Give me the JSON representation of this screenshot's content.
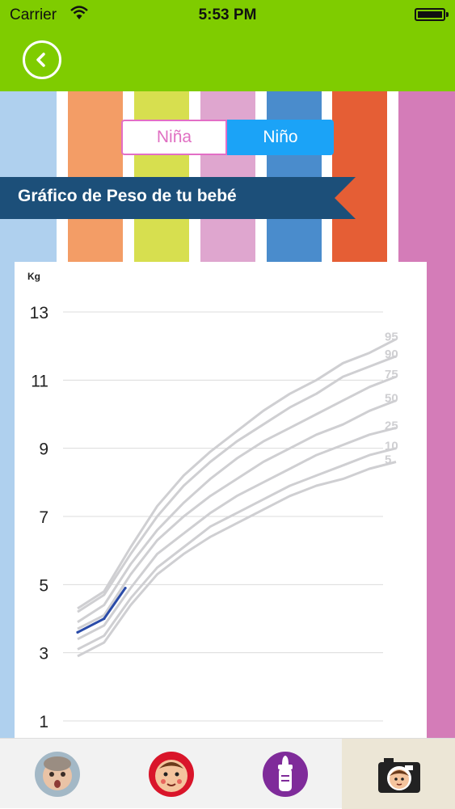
{
  "status_bar": {
    "carrier": "Carrier",
    "time": "5:53 PM"
  },
  "nav": {
    "back_icon": "chevron-left-icon"
  },
  "segment": {
    "girl_label": "Niña",
    "boy_label": "Niño",
    "selected": "Niño"
  },
  "banner": {
    "title": "Gráfico de Peso de tu bebé"
  },
  "colors": {
    "nav_green": "#7fcc00",
    "stripes": [
      "#afd0ee",
      "#f39d66",
      "#d7df4f",
      "#dfa6cf",
      "#4a8ccc",
      "#e55e35",
      "#d47cb8"
    ],
    "banner": "#1c4f79",
    "girl_pink": "#e06fc2",
    "boy_blue": "#1ba3f7",
    "percentile_grey": "#cfcfd2",
    "baby_line": "#2a4ba8"
  },
  "chart_data": {
    "type": "line",
    "ylabel": "Kg",
    "xlabel": "",
    "yticks": [
      1,
      3,
      5,
      7,
      9,
      11,
      13
    ],
    "ylim": [
      1,
      13
    ],
    "xlim": [
      0,
      12
    ],
    "grid": true,
    "x": [
      0,
      1,
      2,
      3,
      4,
      5,
      6,
      7,
      8,
      9,
      10,
      11,
      12
    ],
    "series": [
      {
        "name": "5",
        "values": [
          2.9,
          3.3,
          4.4,
          5.3,
          5.9,
          6.4,
          6.8,
          7.2,
          7.6,
          7.9,
          8.1,
          8.4,
          8.6
        ]
      },
      {
        "name": "10",
        "values": [
          3.1,
          3.5,
          4.6,
          5.5,
          6.1,
          6.7,
          7.1,
          7.5,
          7.9,
          8.2,
          8.5,
          8.8,
          9.0
        ]
      },
      {
        "name": "25",
        "values": [
          3.4,
          3.8,
          4.9,
          5.9,
          6.5,
          7.1,
          7.6,
          8.0,
          8.4,
          8.8,
          9.1,
          9.4,
          9.6
        ]
      },
      {
        "name": "50",
        "values": [
          3.7,
          4.1,
          5.3,
          6.3,
          7.0,
          7.6,
          8.1,
          8.6,
          9.0,
          9.4,
          9.7,
          10.1,
          10.4
        ]
      },
      {
        "name": "75",
        "values": [
          3.9,
          4.4,
          5.6,
          6.6,
          7.4,
          8.1,
          8.7,
          9.2,
          9.6,
          10.0,
          10.4,
          10.8,
          11.1
        ]
      },
      {
        "name": "90",
        "values": [
          4.2,
          4.7,
          5.9,
          7.0,
          7.9,
          8.6,
          9.2,
          9.7,
          10.2,
          10.6,
          11.1,
          11.4,
          11.7
        ]
      },
      {
        "name": "95",
        "values": [
          4.3,
          4.8,
          6.1,
          7.3,
          8.2,
          8.9,
          9.5,
          10.1,
          10.6,
          11.0,
          11.5,
          11.8,
          12.2
        ]
      }
    ],
    "baby_measurements": {
      "x": [
        0,
        1,
        1.8
      ],
      "y": [
        3.6,
        4.0,
        4.9
      ]
    }
  },
  "tabs": [
    {
      "icon": "baby-photo-icon",
      "active": false
    },
    {
      "icon": "baby-face-icon",
      "active": false
    },
    {
      "icon": "baby-bottle-icon",
      "active": false
    },
    {
      "icon": "camera-icon",
      "active": true
    }
  ]
}
